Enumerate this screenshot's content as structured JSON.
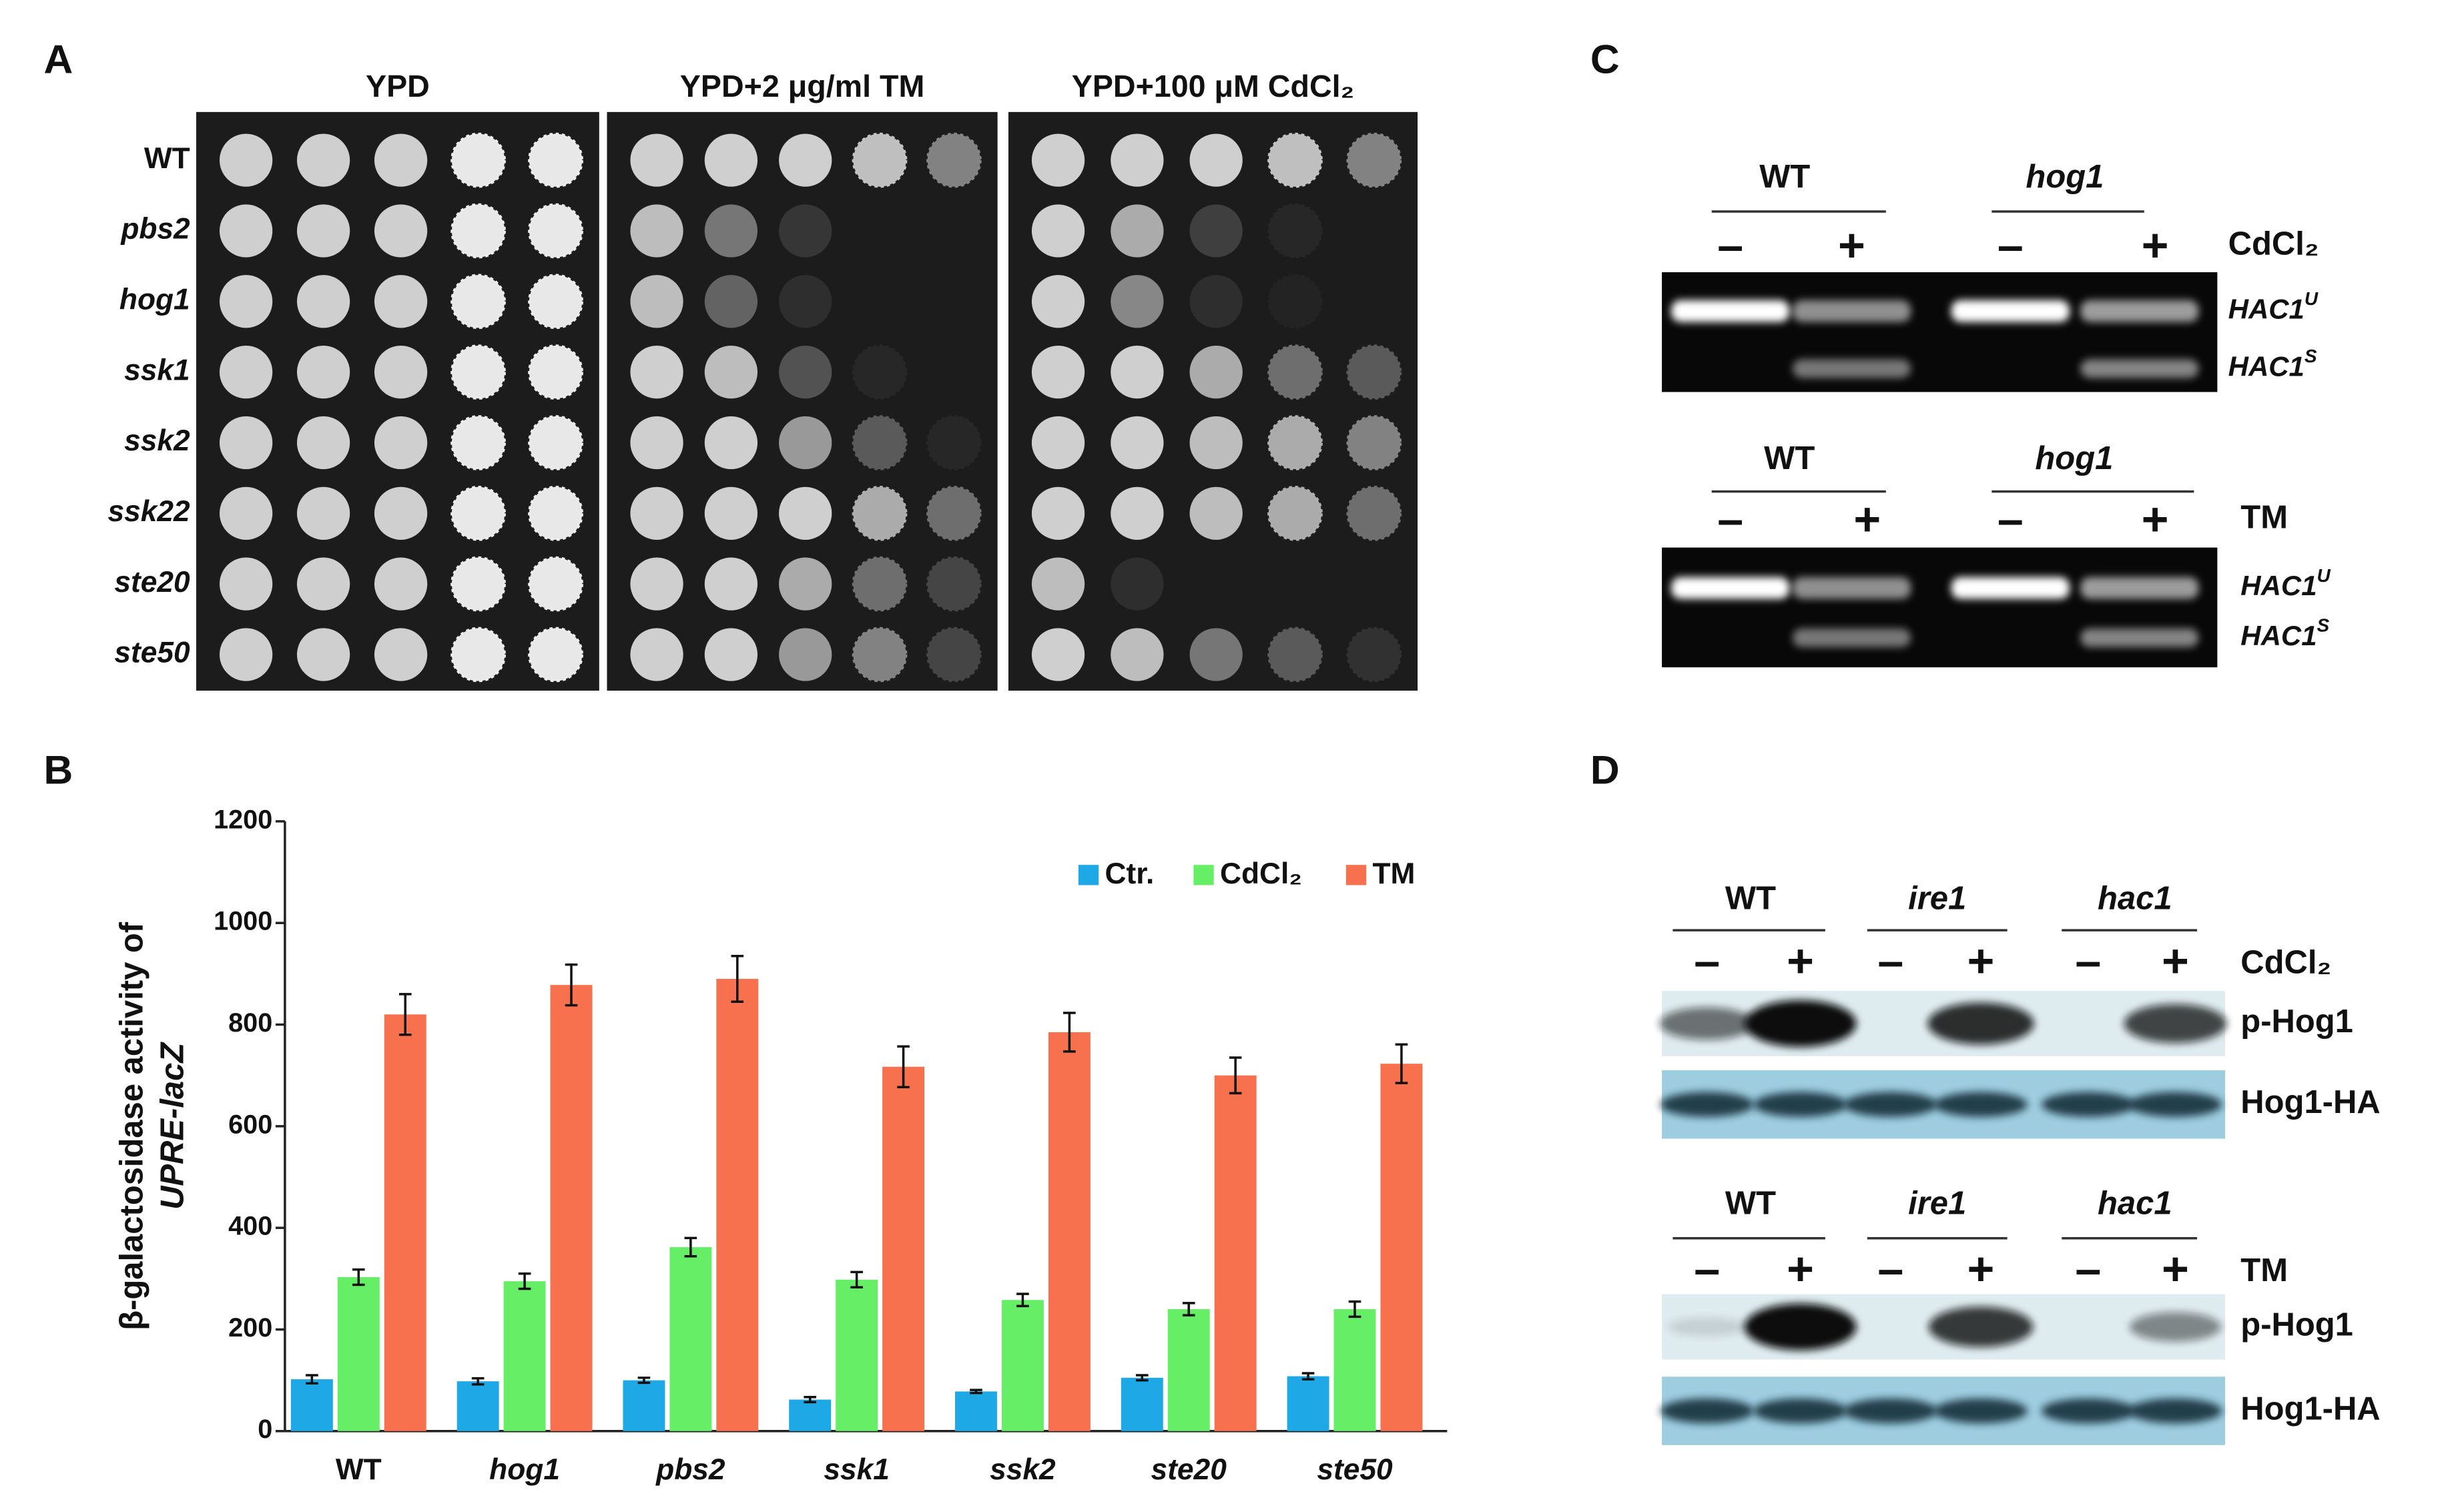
{
  "panel_labels": [
    "A",
    "B",
    "C",
    "D"
  ],
  "panel_a": {
    "conditions": [
      "YPD",
      "YPD+2 μg/ml TM",
      "YPD+100 μM CdCl₂"
    ],
    "strains": [
      "WT",
      "pbs2",
      "hog1",
      "ssk1",
      "ssk2",
      "ssk22",
      "ste20",
      "ste50"
    ]
  },
  "panel_c": {
    "blots": [
      {
        "groups": [
          "WT",
          "hog1"
        ],
        "signs": [
          "–",
          "+",
          "–",
          "+"
        ],
        "treatment": "CdCl₂",
        "bands": [
          {
            "name": "HAC1",
            "sup": "U"
          },
          {
            "name": "HAC1",
            "sup": "S"
          }
        ]
      },
      {
        "groups": [
          "WT",
          "hog1"
        ],
        "signs": [
          "–",
          "+",
          "–",
          "+"
        ],
        "treatment": "TM",
        "bands": [
          {
            "name": "HAC1",
            "sup": "U"
          },
          {
            "name": "HAC1",
            "sup": "S"
          }
        ]
      }
    ]
  },
  "panel_d": {
    "blots": [
      {
        "groups": [
          "WT",
          "ire1",
          "hac1"
        ],
        "signs": [
          "–",
          "+",
          "–",
          "+",
          "–",
          "+"
        ],
        "treatment": "CdCl₂",
        "rows": [
          "p-Hog1",
          "Hog1-HA"
        ]
      },
      {
        "groups": [
          "WT",
          "ire1",
          "hac1"
        ],
        "signs": [
          "–",
          "+",
          "–",
          "+",
          "–",
          "+"
        ],
        "treatment": "TM",
        "rows": [
          "p-Hog1",
          "Hog1-HA"
        ]
      }
    ]
  },
  "chart_data": {
    "type": "bar",
    "ylabel": [
      "β-galactosidase activity of",
      "UPRE-lacZ"
    ],
    "categories": [
      "WT",
      "hog1",
      "pbs2",
      "ssk1",
      "ssk2",
      "ste20",
      "ste50"
    ],
    "series": [
      {
        "name": "Ctr.",
        "color": "#1ea8e6",
        "values": [
          102,
          98,
          100,
          62,
          78,
          105,
          108
        ],
        "errors": [
          8,
          6,
          5,
          5,
          3,
          5,
          6
        ]
      },
      {
        "name": "CdCl₂",
        "color": "#66ee66",
        "values": [
          303,
          295,
          362,
          298,
          258,
          240,
          240
        ],
        "errors": [
          15,
          15,
          18,
          15,
          12,
          12,
          15
        ]
      },
      {
        "name": "TM",
        "color": "#f7714e",
        "values": [
          820,
          878,
          890,
          717,
          785,
          700,
          723
        ],
        "errors": [
          40,
          40,
          45,
          40,
          38,
          35,
          38
        ]
      }
    ],
    "ylim": [
      0,
      1200
    ],
    "yticks": [
      0,
      200,
      400,
      600,
      800,
      1000,
      1200
    ],
    "legend": "top-right"
  }
}
